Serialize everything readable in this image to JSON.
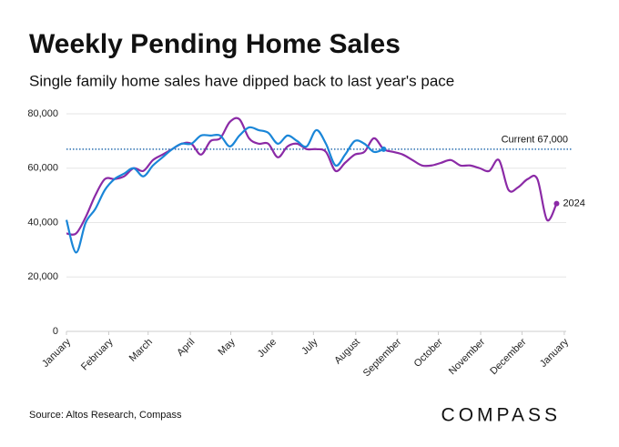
{
  "chart_data": {
    "type": "line",
    "title": "Weekly Pending Home Sales",
    "subtitle": "Single family home sales have dipped back to last year's pace",
    "source": "Source: Altos Research, Compass",
    "brand": "COMPASS",
    "xlim": [
      0,
      52
    ],
    "xticks": [
      {
        "value": 0,
        "label": "January"
      },
      {
        "value": 4.4,
        "label": "February"
      },
      {
        "value": 8.5,
        "label": "March"
      },
      {
        "value": 12.9,
        "label": "April"
      },
      {
        "value": 17.1,
        "label": "May"
      },
      {
        "value": 21.4,
        "label": "June"
      },
      {
        "value": 25.7,
        "label": "July"
      },
      {
        "value": 30.1,
        "label": "August"
      },
      {
        "value": 34.4,
        "label": "September"
      },
      {
        "value": 38.7,
        "label": "October"
      },
      {
        "value": 43.1,
        "label": "November"
      },
      {
        "value": 47.4,
        "label": "December"
      },
      {
        "value": 51.8,
        "label": "January"
      }
    ],
    "ylim": [
      0,
      80000
    ],
    "yticks": [
      {
        "value": 0,
        "label": "0"
      },
      {
        "value": 20000,
        "label": "20,000"
      },
      {
        "value": 40000,
        "label": "40,000"
      },
      {
        "value": 60000,
        "label": "60,000"
      },
      {
        "value": 80000,
        "label": "80,000"
      }
    ],
    "grid": true,
    "annotation": {
      "text": "Current 67,000",
      "value": 67000,
      "color": "#2a6fb0"
    },
    "series": [
      {
        "name": "2024",
        "color": "#8b2aa6",
        "x": [
          0,
          1,
          2,
          3,
          4,
          5,
          6,
          7,
          8,
          9,
          10,
          11,
          12,
          13,
          14,
          15,
          16,
          17,
          18,
          19,
          20,
          21,
          22,
          23,
          24,
          25,
          26,
          27,
          28,
          29,
          30,
          31,
          32,
          33,
          34,
          35,
          36,
          37,
          38,
          39,
          40,
          41,
          42,
          43,
          44,
          45,
          46,
          47,
          48,
          49,
          50,
          51
        ],
        "values": [
          36000,
          36000,
          42000,
          50000,
          56000,
          56000,
          57000,
          60000,
          59000,
          63000,
          65000,
          67000,
          69000,
          69000,
          65000,
          70000,
          71000,
          77000,
          78000,
          71000,
          69000,
          69000,
          64000,
          68000,
          69000,
          67000,
          67000,
          66000,
          59000,
          62000,
          65000,
          66000,
          71000,
          67000,
          66000,
          65000,
          63000,
          61000,
          61000,
          62000,
          63000,
          61000,
          61000,
          60000,
          59000,
          63000,
          52000,
          53000,
          56000,
          56000,
          41000,
          47000
        ]
      },
      {
        "color": "#1a86d8",
        "x": [
          0,
          1,
          2,
          3,
          4,
          5,
          6,
          7,
          8,
          9,
          10,
          11,
          12,
          13,
          14,
          15,
          16,
          17,
          18,
          19,
          20,
          21,
          22,
          23,
          24,
          25,
          26,
          27,
          28,
          29,
          30,
          31,
          32,
          33
        ],
        "values": [
          41000,
          29000,
          40000,
          45000,
          52000,
          56000,
          58000,
          60000,
          57000,
          61000,
          64000,
          67000,
          69000,
          69000,
          72000,
          72000,
          72000,
          68000,
          72000,
          75000,
          74000,
          73000,
          69000,
          72000,
          70000,
          68000,
          74000,
          69000,
          61000,
          65000,
          70000,
          69000,
          66000,
          67000
        ]
      }
    ]
  }
}
